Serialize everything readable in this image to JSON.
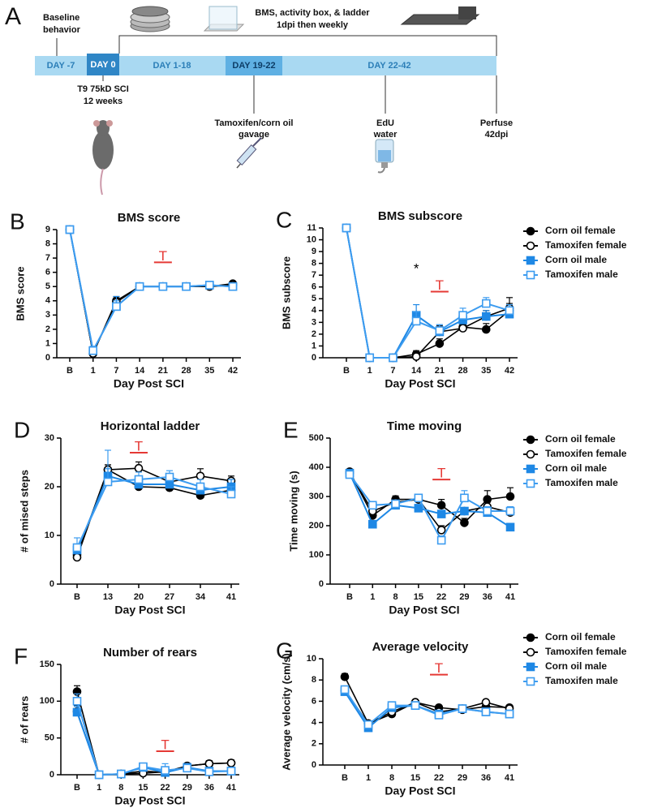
{
  "timeline": {
    "panel": "A",
    "segments": [
      "DAY -7",
      "DAY 0",
      "DAY 1-18",
      "DAY 19-22",
      "DAY 22-42"
    ],
    "notes": {
      "baseline": [
        "Baseline",
        "behavior"
      ],
      "behavior": [
        "BMS, activity box, & ladder",
        "1dpi then weekly"
      ],
      "injury": [
        "T9 75kD SCI",
        "12 weeks"
      ],
      "gavage": [
        "Tamoxifen/corn oil",
        "gavage"
      ],
      "edu": [
        "EdU",
        "water"
      ],
      "perfuse": [
        "Perfuse",
        "42dpi"
      ]
    }
  },
  "chart_data": [
    {
      "panel": "B",
      "type": "line",
      "title": "BMS score",
      "xlabel": "Day Post SCI",
      "ylabel": "BMS score",
      "categories": [
        "B",
        "1",
        "7",
        "14",
        "21",
        "28",
        "35",
        "42"
      ],
      "ylim": [
        0,
        9
      ],
      "yticks": [
        0,
        1,
        2,
        3,
        4,
        5,
        6,
        7,
        8,
        9
      ],
      "legend": false,
      "series": [
        {
          "name": "Corn oil female",
          "color": "#000000",
          "marker": "circle",
          "filled": true,
          "values": [
            9,
            0.3,
            4.0,
            5.0,
            5.0,
            5.0,
            5.0,
            5.2
          ],
          "errors": [
            0,
            0.2,
            0.3,
            0.1,
            0.1,
            0.1,
            0.1,
            0.1
          ]
        },
        {
          "name": "Tamoxifen female",
          "color": "#000000",
          "marker": "circle",
          "filled": false,
          "values": [
            9,
            0.3,
            3.9,
            5.0,
            5.0,
            5.0,
            5.0,
            5.1
          ],
          "errors": [
            0,
            0.2,
            0.3,
            0.1,
            0.1,
            0.1,
            0.1,
            0.1
          ]
        },
        {
          "name": "Corn oil male",
          "color": "#1e88e5",
          "marker": "square",
          "filled": true,
          "values": [
            9,
            0.5,
            3.6,
            5.0,
            5.0,
            5.0,
            5.1,
            5.0
          ],
          "errors": [
            0,
            0.3,
            0.7,
            0.1,
            0.1,
            0.1,
            0.1,
            0.1
          ]
        },
        {
          "name": "Tamoxifen male",
          "color": "#3d9cf0",
          "marker": "square",
          "filled": false,
          "values": [
            9,
            0.5,
            3.6,
            5.0,
            5.0,
            5.0,
            5.1,
            5.0
          ],
          "errors": [
            0,
            0.3,
            0.4,
            0.1,
            0.1,
            0.1,
            0.1,
            0.1
          ]
        }
      ],
      "annotations": [
        {
          "text": "T",
          "x": "21",
          "y": 6.7,
          "color": "#e53935",
          "bar": true
        }
      ]
    },
    {
      "panel": "C",
      "type": "line",
      "title": "BMS subscore",
      "xlabel": "Day Post SCI",
      "ylabel": "BMS subscore",
      "categories": [
        "B",
        "1",
        "7",
        "14",
        "21",
        "28",
        "35",
        "42"
      ],
      "ylim": [
        0,
        11
      ],
      "yticks": [
        0,
        1,
        2,
        3,
        4,
        5,
        6,
        7,
        8,
        9,
        10,
        11
      ],
      "legend": true,
      "series": [
        {
          "name": "Corn oil female",
          "color": "#000000",
          "marker": "circle",
          "filled": true,
          "values": [
            11,
            0,
            0,
            0.3,
            1.2,
            2.6,
            2.4,
            4.0
          ],
          "errors": [
            0,
            0,
            0,
            0.3,
            0.4,
            0.4,
            0.5,
            0.6
          ]
        },
        {
          "name": "Tamoxifen female",
          "color": "#000000",
          "marker": "circle",
          "filled": false,
          "values": [
            11,
            0,
            0,
            0.1,
            2.2,
            2.5,
            3.5,
            4.2
          ],
          "errors": [
            0,
            0,
            0,
            0.2,
            0.5,
            0.4,
            0.5,
            0.9
          ]
        },
        {
          "name": "Corn oil male",
          "color": "#1e88e5",
          "marker": "square",
          "filled": true,
          "values": [
            11,
            0,
            0,
            3.6,
            2.2,
            3.2,
            3.5,
            3.7
          ],
          "errors": [
            0,
            0,
            0,
            0.9,
            0.6,
            0.5,
            0.5,
            0.4
          ]
        },
        {
          "name": "Tamoxifen male",
          "color": "#3d9cf0",
          "marker": "square",
          "filled": false,
          "values": [
            11,
            0,
            0,
            3.1,
            2.3,
            3.6,
            4.6,
            4.0
          ],
          "errors": [
            0,
            0,
            0,
            0.8,
            0.5,
            0.6,
            0.5,
            0.5
          ]
        }
      ],
      "annotations": [
        {
          "text": "*",
          "x": "14",
          "y": 7.0,
          "color": "#000000",
          "bar": false
        },
        {
          "text": "T",
          "x": "21",
          "y": 5.6,
          "color": "#e53935",
          "bar": true
        }
      ]
    },
    {
      "panel": "D",
      "type": "line",
      "title": "Horizontal ladder",
      "xlabel": "Day Post SCI",
      "ylabel": "# of mised steps",
      "categories": [
        "B",
        "13",
        "20",
        "27",
        "34",
        "41"
      ],
      "ylim": [
        0,
        30
      ],
      "yticks": [
        0,
        10,
        20,
        30
      ],
      "legend": false,
      "series": [
        {
          "name": "Corn oil female",
          "color": "#000000",
          "marker": "circle",
          "filled": true,
          "values": [
            6.0,
            23.5,
            20.0,
            19.8,
            18.2,
            19.3
          ],
          "errors": [
            0.8,
            1.0,
            0.8,
            0.8,
            0.8,
            0.8
          ]
        },
        {
          "name": "Tamoxifen female",
          "color": "#000000",
          "marker": "circle",
          "filled": false,
          "values": [
            5.5,
            23.5,
            23.8,
            21.0,
            22.2,
            21.2
          ],
          "errors": [
            0.8,
            1.0,
            1.3,
            1.0,
            1.5,
            1.0
          ]
        },
        {
          "name": "Corn oil male",
          "color": "#1e88e5",
          "marker": "square",
          "filled": true,
          "values": [
            7.0,
            22.2,
            20.5,
            20.5,
            19.3,
            20.0
          ],
          "errors": [
            1.0,
            1.5,
            1.0,
            1.0,
            1.0,
            1.5
          ]
        },
        {
          "name": "Tamoxifen male",
          "color": "#3d9cf0",
          "marker": "square",
          "filled": false,
          "values": [
            7.5,
            21.0,
            21.5,
            22.0,
            20.0,
            18.5
          ],
          "errors": [
            2.0,
            6.5,
            1.5,
            1.3,
            1.5,
            1.5
          ]
        }
      ],
      "annotations": [
        {
          "text": "T",
          "x": "20",
          "y": 27,
          "color": "#e53935",
          "bar": true
        }
      ]
    },
    {
      "panel": "E",
      "type": "line",
      "title": "Time moving",
      "xlabel": "Day Post SCI",
      "ylabel": "Time moving (s)",
      "categories": [
        "B",
        "1",
        "8",
        "15",
        "22",
        "29",
        "36",
        "41"
      ],
      "ylim": [
        0,
        500
      ],
      "yticks": [
        0,
        100,
        200,
        300,
        400,
        500
      ],
      "legend": true,
      "series": [
        {
          "name": "Corn oil female",
          "color": "#000000",
          "marker": "circle",
          "filled": true,
          "values": [
            385,
            235,
            290,
            290,
            270,
            210,
            290,
            300
          ],
          "errors": [
            8,
            15,
            12,
            12,
            20,
            15,
            30,
            30
          ]
        },
        {
          "name": "Tamoxifen female",
          "color": "#000000",
          "marker": "circle",
          "filled": false,
          "values": [
            380,
            250,
            280,
            290,
            185,
            250,
            265,
            245
          ],
          "errors": [
            8,
            15,
            12,
            12,
            15,
            12,
            15,
            15
          ]
        },
        {
          "name": "Corn oil male",
          "color": "#1e88e5",
          "marker": "square",
          "filled": true,
          "values": [
            380,
            205,
            270,
            260,
            240,
            250,
            245,
            195
          ],
          "errors": [
            8,
            12,
            10,
            10,
            10,
            10,
            10,
            10
          ]
        },
        {
          "name": "Tamoxifen male",
          "color": "#3d9cf0",
          "marker": "square",
          "filled": false,
          "values": [
            375,
            270,
            275,
            295,
            150,
            295,
            250,
            250
          ],
          "errors": [
            8,
            12,
            10,
            12,
            15,
            25,
            15,
            15
          ]
        }
      ],
      "annotations": [
        {
          "text": "T",
          "x": "22",
          "y": 358,
          "color": "#e53935",
          "bar": true
        }
      ]
    },
    {
      "panel": "F",
      "type": "line",
      "title": "Number of rears",
      "xlabel": "Day Post SCI",
      "ylabel": "# of rears",
      "categories": [
        "B",
        "1",
        "8",
        "15",
        "22",
        "29",
        "36",
        "41"
      ],
      "ylim": [
        0,
        150
      ],
      "yticks": [
        0,
        50,
        100,
        150
      ],
      "legend": false,
      "series": [
        {
          "name": "Corn oil female",
          "color": "#000000",
          "marker": "circle",
          "filled": true,
          "values": [
            113,
            0,
            1,
            5,
            3,
            12,
            15,
            16
          ],
          "errors": [
            8,
            0,
            1,
            3,
            3,
            3,
            4,
            4
          ]
        },
        {
          "name": "Tamoxifen female",
          "color": "#000000",
          "marker": "circle",
          "filled": false,
          "values": [
            86,
            0,
            1,
            2,
            4,
            12,
            15,
            16
          ],
          "errors": [
            8,
            0,
            1,
            2,
            3,
            3,
            4,
            4
          ]
        },
        {
          "name": "Corn oil male",
          "color": "#1e88e5",
          "marker": "square",
          "filled": true,
          "values": [
            85,
            0,
            1,
            10,
            3,
            10,
            5,
            5
          ],
          "errors": [
            8,
            0,
            1,
            3,
            2,
            3,
            2,
            2
          ]
        },
        {
          "name": "Tamoxifen male",
          "color": "#3d9cf0",
          "marker": "square",
          "filled": false,
          "values": [
            100,
            0,
            1,
            11,
            6,
            9,
            4,
            5
          ],
          "errors": [
            10,
            0,
            1,
            3,
            9,
            3,
            2,
            2
          ]
        }
      ],
      "annotations": [
        {
          "text": "T",
          "x": "22",
          "y": 32,
          "color": "#e53935",
          "bar": true
        }
      ]
    },
    {
      "panel": "G",
      "type": "line",
      "title": "Average velocity",
      "xlabel": "Day Post SCI",
      "ylabel": "Average velocity (cm/s)",
      "categories": [
        "B",
        "1",
        "8",
        "15",
        "22",
        "29",
        "36",
        "41"
      ],
      "ylim": [
        0,
        10
      ],
      "yticks": [
        0,
        2,
        4,
        6,
        8,
        10
      ],
      "legend": true,
      "series": [
        {
          "name": "Corn oil female",
          "color": "#000000",
          "marker": "circle",
          "filled": true,
          "values": [
            8.3,
            3.9,
            4.8,
            5.9,
            5.4,
            5.2,
            5.5,
            5.4
          ],
          "errors": [
            0.3,
            0.2,
            0.2,
            0.2,
            0.2,
            0.2,
            0.2,
            0.2
          ]
        },
        {
          "name": "Tamoxifen female",
          "color": "#000000",
          "marker": "circle",
          "filled": false,
          "values": [
            7.0,
            3.9,
            5.0,
            5.9,
            5.0,
            5.3,
            5.9,
            5.3
          ],
          "errors": [
            0.3,
            0.2,
            0.2,
            0.2,
            0.2,
            0.2,
            0.2,
            0.2
          ]
        },
        {
          "name": "Corn oil male",
          "color": "#1e88e5",
          "marker": "square",
          "filled": true,
          "values": [
            6.9,
            3.5,
            5.4,
            5.6,
            4.8,
            5.3,
            5.0,
            4.8
          ],
          "errors": [
            0.3,
            0.2,
            0.3,
            0.2,
            0.2,
            0.2,
            0.2,
            0.2
          ]
        },
        {
          "name": "Tamoxifen male",
          "color": "#3d9cf0",
          "marker": "square",
          "filled": false,
          "values": [
            7.1,
            3.8,
            5.6,
            5.6,
            4.7,
            5.3,
            5.0,
            4.8
          ],
          "errors": [
            0.3,
            0.2,
            0.3,
            0.2,
            0.2,
            0.2,
            0.2,
            0.2
          ]
        }
      ],
      "annotations": [
        {
          "text": "T",
          "x": "22",
          "y": 8.5,
          "color": "#e53935",
          "bar": true
        }
      ]
    }
  ]
}
